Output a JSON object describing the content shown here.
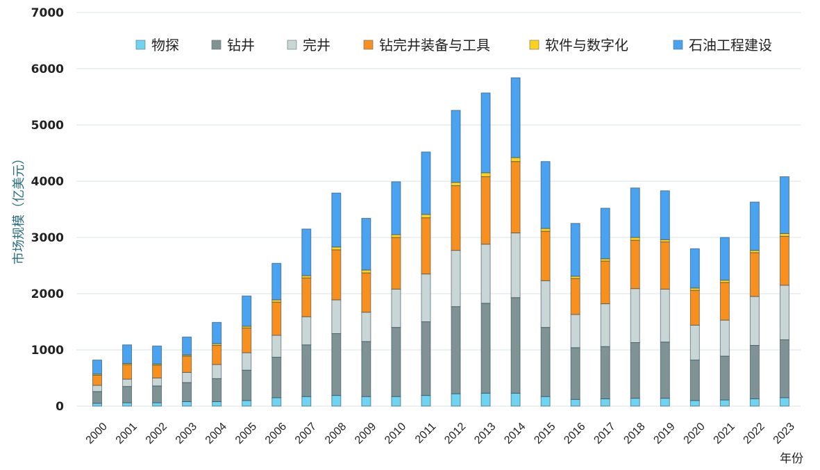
{
  "chart_data": {
    "type": "bar",
    "stacked": true,
    "title": "",
    "xlabel": "年份",
    "ylabel": "市场规模（亿美元）",
    "ylim": [
      0,
      7000
    ],
    "yticks": [
      0,
      1000,
      2000,
      3000,
      4000,
      5000,
      6000,
      7000
    ],
    "grid": true,
    "legend_position": "top",
    "categories": [
      "2000",
      "2001",
      "2002",
      "2003",
      "2004",
      "2005",
      "2006",
      "2007",
      "2008",
      "2009",
      "2010",
      "2011",
      "2012",
      "2013",
      "2014",
      "2015",
      "2016",
      "2017",
      "2018",
      "2019",
      "2020",
      "2021",
      "2022",
      "2023"
    ],
    "series": [
      {
        "name": "物探",
        "color": "#6fd3f2",
        "values": [
          50,
          60,
          60,
          80,
          80,
          100,
          150,
          170,
          190,
          170,
          170,
          190,
          220,
          230,
          230,
          170,
          120,
          130,
          140,
          140,
          100,
          110,
          130,
          150
        ]
      },
      {
        "name": "钻井",
        "color": "#7f9294",
        "values": [
          210,
          290,
          300,
          340,
          410,
          540,
          720,
          920,
          1100,
          980,
          1230,
          1310,
          1550,
          1600,
          1700,
          1230,
          920,
          930,
          990,
          1000,
          720,
          780,
          950,
          1030
        ]
      },
      {
        "name": "完井",
        "color": "#c9d6d6",
        "values": [
          110,
          130,
          140,
          180,
          250,
          310,
          390,
          500,
          600,
          520,
          680,
          850,
          1000,
          1050,
          1150,
          830,
          590,
          760,
          960,
          940,
          620,
          640,
          870,
          970
        ]
      },
      {
        "name": "钻完井装备与工具",
        "color": "#f7901e",
        "values": [
          180,
          260,
          230,
          290,
          340,
          440,
          590,
          690,
          890,
          700,
          920,
          1000,
          1150,
          1200,
          1270,
          880,
          640,
          760,
          860,
          840,
          620,
          670,
          780,
          870
        ]
      },
      {
        "name": "软件与数字化",
        "color": "#ffd11a",
        "values": [
          20,
          20,
          20,
          20,
          30,
          30,
          40,
          40,
          50,
          50,
          50,
          60,
          60,
          70,
          70,
          50,
          40,
          40,
          50,
          40,
          40,
          40,
          40,
          50
        ]
      },
      {
        "name": "石油工程建设",
        "color": "#4aa3f0",
        "values": [
          250,
          330,
          320,
          320,
          380,
          540,
          650,
          830,
          960,
          920,
          940,
          1110,
          1280,
          1420,
          1420,
          1190,
          940,
          900,
          880,
          870,
          700,
          760,
          860,
          1010
        ]
      }
    ]
  }
}
